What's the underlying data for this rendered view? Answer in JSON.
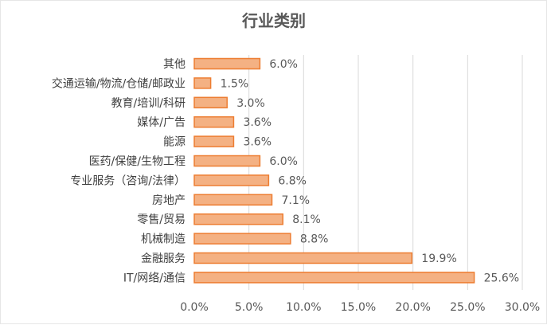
{
  "chart_data": {
    "type": "bar",
    "orientation": "horizontal",
    "title": "行业类别",
    "xlabel": "",
    "ylabel": "",
    "xlim": [
      0,
      30
    ],
    "ticks": [
      "0.0%",
      "5.0%",
      "10.0%",
      "15.0%",
      "20.0%",
      "25.0%",
      "30.0%"
    ],
    "tick_values": [
      0,
      5,
      10,
      15,
      20,
      25,
      30
    ],
    "grid": true,
    "bar_fill": "#f4b183",
    "bar_stroke": "#ed7d31",
    "categories": [
      "其他",
      "交通运输/物流/仓储/邮政业",
      "教育/培训/科研",
      "媒体/广告",
      "能源",
      "医药/保健/生物工程",
      "专业服务（咨询/法律）",
      "房地产",
      "零售/贸易",
      "机械制造",
      "金融服务",
      "IT/网络/通信"
    ],
    "values": [
      6.0,
      1.5,
      3.0,
      3.6,
      3.6,
      6.0,
      6.8,
      7.1,
      8.1,
      8.8,
      19.9,
      25.6
    ],
    "value_labels": [
      "6.0%",
      "1.5%",
      "3.0%",
      "3.6%",
      "3.6%",
      "6.0%",
      "6.8%",
      "7.1%",
      "8.1%",
      "8.8%",
      "19.9%",
      "25.6%"
    ]
  }
}
